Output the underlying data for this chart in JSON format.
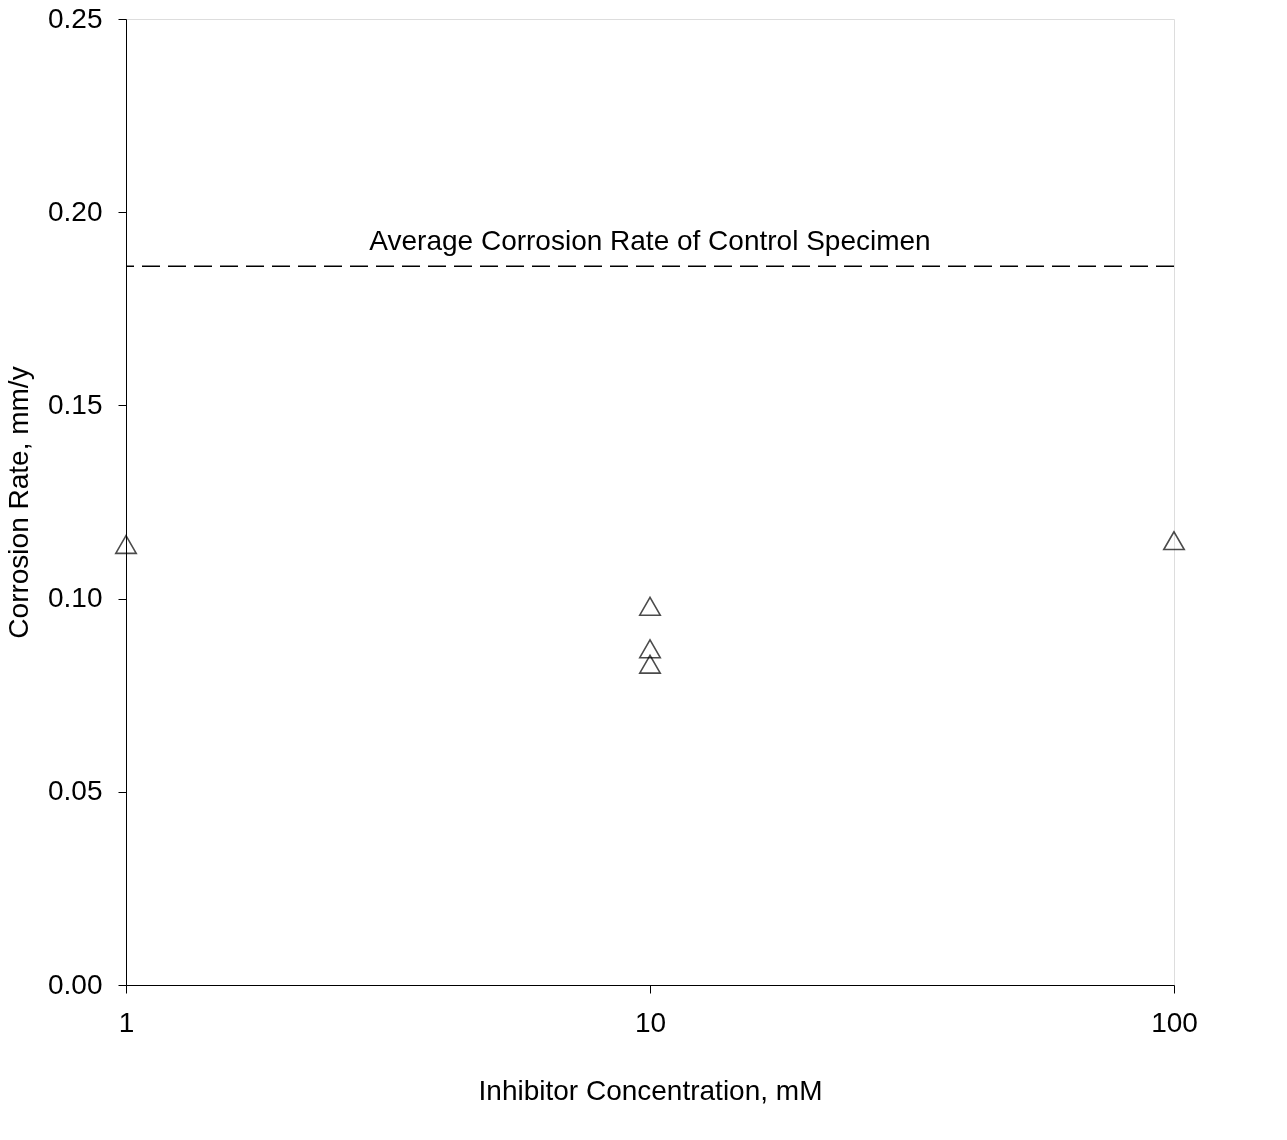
{
  "chart_data": {
    "type": "scatter",
    "xlabel": "Inhibitor Concentration, mM",
    "ylabel": "Corrosion Rate, mm/y",
    "x": [
      1,
      10,
      10,
      10,
      100
    ],
    "series": [
      {
        "color": "#000000",
        "values": [
          0.114,
          0.098,
          0.087,
          0.083,
          0.115
        ]
      }
    ],
    "log": "x",
    "xlim": [
      1,
      100
    ],
    "xticks": [
      1,
      10,
      100
    ],
    "ylim": [
      0,
      0.25
    ],
    "yticks": [
      {
        "value": 0,
        "label": "0.00"
      },
      {
        "value": 0.05,
        "label": "0.05"
      },
      {
        "value": 0.1,
        "label": "0.10"
      },
      {
        "value": 0.15,
        "label": "0.15"
      },
      {
        "value": 0.2,
        "label": "0.20"
      },
      {
        "value": 0.25,
        "label": "0.25"
      }
    ],
    "ref_lines": [
      {
        "axis": "y",
        "value": 0.186,
        "label": "Average Corrosion Rate of Control Specimen",
        "line_style": "dashed",
        "color": "#000000"
      }
    ],
    "marker": "triangle",
    "grid": false
  }
}
